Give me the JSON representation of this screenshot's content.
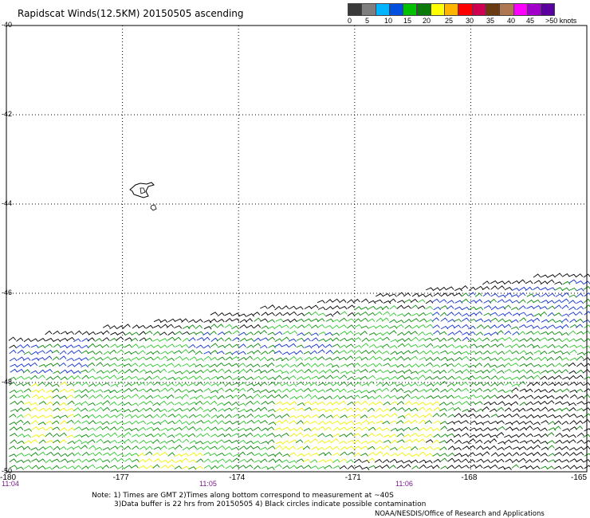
{
  "title": "Rapidscat Winds(12.5KM) 20150505 ascending",
  "legend": {
    "colors": [
      "#3a3a3a",
      "#7f7f7f",
      "#00b4ff",
      "#0050e0",
      "#00c000",
      "#0a7a0a",
      "#ffff00",
      "#ffb400",
      "#ff0000",
      "#d00050",
      "#6a3a10",
      "#b07850",
      "#ff00ff",
      "#a000c8",
      "#5a00a0"
    ],
    "labels": [
      "0",
      "5",
      "10",
      "15",
      "20",
      "25",
      "30",
      "35",
      "40",
      "45",
      ">50 knots"
    ]
  },
  "lat_labels": [
    "-40",
    "-42",
    "-44",
    "-46",
    "-48",
    "-50"
  ],
  "lon_labels": [
    "-180",
    "-177",
    "-174",
    "-171",
    "-168",
    "-165"
  ],
  "time_labels": [
    "11:04",
    "11:05",
    "11:06"
  ],
  "notes": {
    "line1": "Note: 1) Times are GMT 2)Times along bottom correspond to measurement at ~40S",
    "line2": "3)Data buffer is 22 hrs from 20150505 4) Black circles indicate possible contamination",
    "line3": "NOAA/NESDIS/Office of Research and Applications"
  },
  "wind_colors": {
    "black": "#000000",
    "blue": "#1030d0",
    "green_light": "#2ec82e",
    "green_dark": "#0a8a0a",
    "yellow": "#f0f000"
  }
}
